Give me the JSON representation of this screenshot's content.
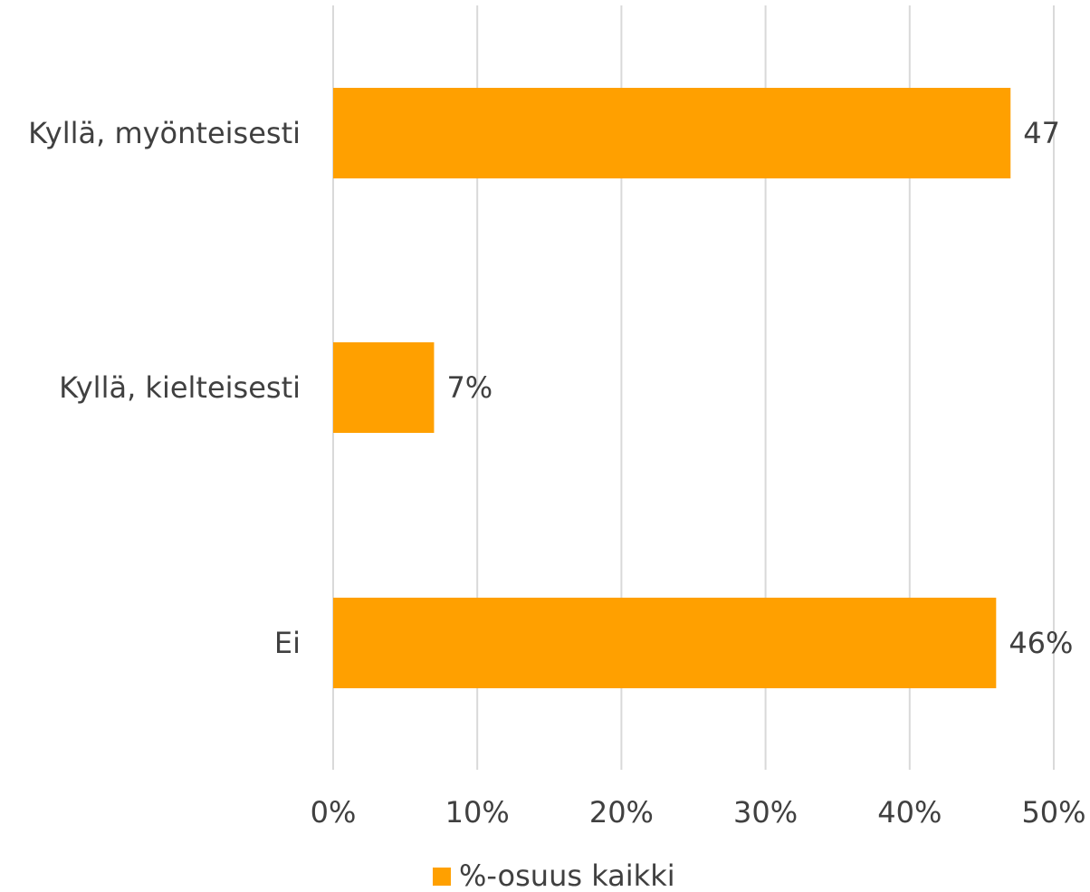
{
  "chart_data": {
    "type": "bar",
    "orientation": "horizontal",
    "categories": [
      "Kyllä, myönteisesti",
      "Kyllä, kielteisesti",
      "Ei"
    ],
    "series": [
      {
        "name": "%-osuus kaikki",
        "values": [
          47,
          7,
          46
        ],
        "data_labels": [
          "47",
          "7%",
          "46%"
        ]
      }
    ],
    "x_ticks": [
      "0%",
      "10%",
      "20%",
      "30%",
      "40%",
      "50%"
    ],
    "xlim": [
      0,
      50
    ],
    "grid": "vertical",
    "legend": "bottom",
    "colors": {
      "bar": "#FFA000",
      "grid": "#D9D9D9",
      "text": "#404040"
    }
  }
}
